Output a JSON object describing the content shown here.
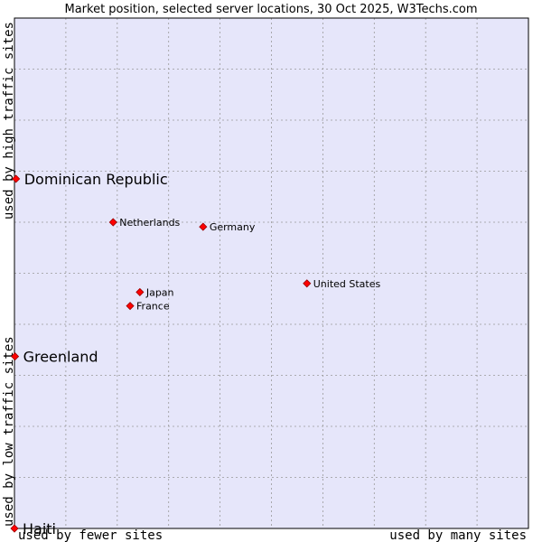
{
  "chart_data": {
    "type": "scatter",
    "title": "Market position, selected server locations, 30 Oct 2025, W3Techs.com",
    "xlabel_left": "used by fewer sites",
    "xlabel_right": "used by many sites",
    "ylabel_bottom": "used by low traffic sites",
    "ylabel_top": "used by high traffic sites",
    "xlim": [
      0,
      100
    ],
    "ylim": [
      0,
      100
    ],
    "grid": true,
    "colors": {
      "plot_background": "#e6e6fa",
      "grid": "#999999",
      "marker": "#ff0000",
      "marker_edge": "#990000",
      "frame": "#000000"
    },
    "points": [
      {
        "name": "Dominican Republic",
        "x": 0.3,
        "y": 68.5,
        "label_size": "large"
      },
      {
        "name": "Netherlands",
        "x": 19.2,
        "y": 60.0,
        "label_size": "small"
      },
      {
        "name": "Germany",
        "x": 36.7,
        "y": 59.1,
        "label_size": "small"
      },
      {
        "name": "United States",
        "x": 56.9,
        "y": 48.0,
        "label_size": "small"
      },
      {
        "name": "Japan",
        "x": 24.4,
        "y": 46.3,
        "label_size": "small"
      },
      {
        "name": "France",
        "x": 22.5,
        "y": 43.6,
        "label_size": "small"
      },
      {
        "name": "Greenland",
        "x": 0.1,
        "y": 33.7,
        "label_size": "large"
      },
      {
        "name": "Haiti",
        "x": 0.0,
        "y": 0.0,
        "label_size": "large"
      }
    ]
  }
}
